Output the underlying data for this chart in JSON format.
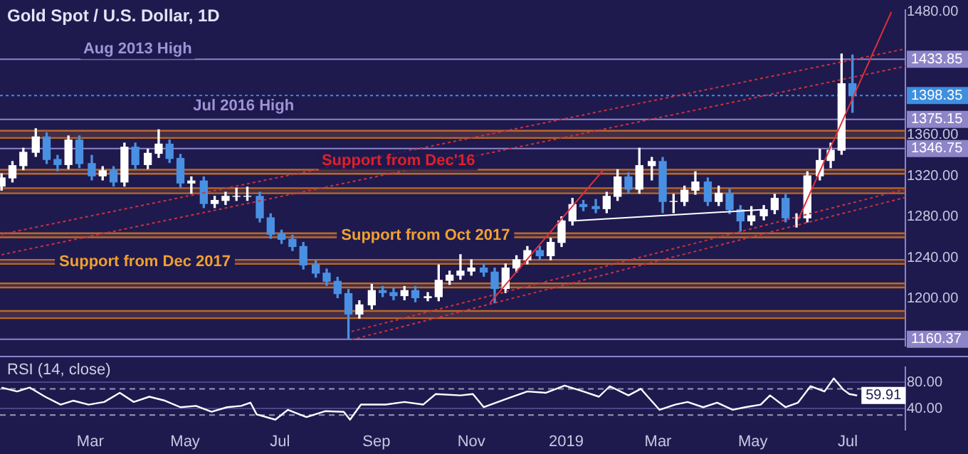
{
  "chart_data": [
    {
      "type": "candlestick",
      "title": "Gold Spot / U.S. Dollar, 1D",
      "tick_labels": "y",
      "x": [
        "2018-01-03",
        "2018-01-10",
        "2018-01-17",
        "2018-01-25",
        "2018-02-01",
        "2018-02-08",
        "2018-02-15",
        "2018-02-22",
        "2018-03-02",
        "2018-03-09",
        "2018-03-16",
        "2018-03-23",
        "2018-03-30",
        "2018-04-07",
        "2018-04-14",
        "2018-04-21",
        "2018-04-28",
        "2018-05-05",
        "2018-05-13",
        "2018-05-20",
        "2018-05-27",
        "2018-06-03",
        "2018-06-10",
        "2018-06-18",
        "2018-06-25",
        "2018-07-02",
        "2018-07-09",
        "2018-07-16",
        "2018-07-24",
        "2018-07-31",
        "2018-08-07",
        "2018-08-14",
        "2018-08-21",
        "2018-08-29",
        "2018-09-05",
        "2018-09-12",
        "2018-09-19",
        "2018-09-26",
        "2018-10-04",
        "2018-10-11",
        "2018-10-18",
        "2018-10-25",
        "2018-11-01",
        "2018-11-09",
        "2018-11-16",
        "2018-11-23",
        "2018-11-30",
        "2018-12-07",
        "2018-12-15",
        "2018-12-22",
        "2018-12-29",
        "2019-01-05",
        "2019-01-12",
        "2019-01-20",
        "2019-01-27",
        "2019-02-03",
        "2019-02-10",
        "2019-02-17",
        "2019-02-25",
        "2019-03-04",
        "2019-03-11",
        "2019-03-18",
        "2019-03-25",
        "2019-04-02",
        "2019-04-09",
        "2019-04-16",
        "2019-04-23",
        "2019-04-30",
        "2019-05-08",
        "2019-05-15",
        "2019-05-22",
        "2019-05-29",
        "2019-06-05",
        "2019-06-13",
        "2019-06-20",
        "2019-06-27",
        "2019-07-04"
      ],
      "ohlc": [
        [
          1310,
          1322,
          1306,
          1318
        ],
        [
          1318,
          1334,
          1314,
          1330
        ],
        [
          1330,
          1347,
          1326,
          1343
        ],
        [
          1343,
          1366,
          1339,
          1358
        ],
        [
          1358,
          1362,
          1332,
          1336
        ],
        [
          1336,
          1340,
          1325,
          1331
        ],
        [
          1331,
          1359,
          1327,
          1355
        ],
        [
          1355,
          1359,
          1328,
          1332
        ],
        [
          1332,
          1340,
          1316,
          1320
        ],
        [
          1320,
          1329,
          1316,
          1325
        ],
        [
          1325,
          1329,
          1310,
          1314
        ],
        [
          1314,
          1352,
          1310,
          1348
        ],
        [
          1348,
          1352,
          1327,
          1331
        ],
        [
          1331,
          1346,
          1327,
          1342
        ],
        [
          1342,
          1365,
          1338,
          1351
        ],
        [
          1351,
          1355,
          1333,
          1337
        ],
        [
          1337,
          1341,
          1309,
          1313
        ],
        [
          1313,
          1319,
          1303,
          1315
        ],
        [
          1315,
          1319,
          1289,
          1293
        ],
        [
          1293,
          1300,
          1289,
          1296
        ],
        [
          1296,
          1304,
          1292,
          1300
        ],
        [
          1300,
          1308,
          1296,
          1300
        ],
        [
          1300,
          1309,
          1296,
          1300
        ],
        [
          1300,
          1304,
          1275,
          1279
        ],
        [
          1279,
          1283,
          1259,
          1263
        ],
        [
          1263,
          1267,
          1254,
          1258
        ],
        [
          1258,
          1262,
          1247,
          1251
        ],
        [
          1251,
          1255,
          1229,
          1233
        ],
        [
          1233,
          1237,
          1221,
          1225
        ],
        [
          1225,
          1229,
          1213,
          1217
        ],
        [
          1217,
          1221,
          1201,
          1205
        ],
        [
          1205,
          1209,
          1161,
          1185
        ],
        [
          1185,
          1198,
          1181,
          1194
        ],
        [
          1194,
          1214,
          1190,
          1208
        ],
        [
          1208,
          1212,
          1202,
          1206
        ],
        [
          1206,
          1210,
          1199,
          1203
        ],
        [
          1203,
          1212,
          1199,
          1208
        ],
        [
          1208,
          1212,
          1197,
          1201
        ],
        [
          1201,
          1206,
          1198,
          1202
        ],
        [
          1202,
          1233,
          1198,
          1218
        ],
        [
          1218,
          1227,
          1214,
          1223
        ],
        [
          1223,
          1243,
          1219,
          1227
        ],
        [
          1227,
          1238,
          1223,
          1230
        ],
        [
          1230,
          1234,
          1222,
          1226
        ],
        [
          1226,
          1230,
          1196,
          1210
        ],
        [
          1210,
          1234,
          1206,
          1230
        ],
        [
          1230,
          1242,
          1226,
          1238
        ],
        [
          1238,
          1251,
          1234,
          1247
        ],
        [
          1247,
          1251,
          1238,
          1242
        ],
        [
          1242,
          1259,
          1238,
          1255
        ],
        [
          1255,
          1280,
          1251,
          1276
        ],
        [
          1276,
          1298,
          1272,
          1292
        ],
        [
          1292,
          1296,
          1286,
          1290
        ],
        [
          1290,
          1297,
          1284,
          1288
        ],
        [
          1288,
          1304,
          1284,
          1300
        ],
        [
          1300,
          1326,
          1296,
          1319
        ],
        [
          1319,
          1323,
          1303,
          1307
        ],
        [
          1307,
          1347,
          1303,
          1330
        ],
        [
          1330,
          1338,
          1316,
          1334
        ],
        [
          1334,
          1338,
          1284,
          1295
        ],
        [
          1295,
          1302,
          1284,
          1295
        ],
        [
          1295,
          1310,
          1291,
          1306
        ],
        [
          1306,
          1324,
          1302,
          1314
        ],
        [
          1314,
          1318,
          1291,
          1295
        ],
        [
          1295,
          1310,
          1291,
          1303
        ],
        [
          1303,
          1307,
          1283,
          1287
        ],
        [
          1287,
          1291,
          1266,
          1276
        ],
        [
          1276,
          1290,
          1272,
          1281
        ],
        [
          1281,
          1291,
          1277,
          1287
        ],
        [
          1287,
          1302,
          1283,
          1298
        ],
        [
          1298,
          1302,
          1275,
          1279
        ],
        [
          1279,
          1283,
          1270,
          1279
        ],
        [
          1279,
          1324,
          1275,
          1320
        ],
        [
          1320,
          1346,
          1316,
          1335
        ],
        [
          1335,
          1352,
          1328,
          1345
        ],
        [
          1345,
          1439,
          1341,
          1410
        ],
        [
          1410,
          1438,
          1382,
          1398.35
        ]
      ],
      "colors": [
        "#ffffff",
        "#ffffff",
        "#ffffff",
        "#ffffff",
        "#4a90e2",
        "#4a90e2",
        "#ffffff",
        "#4a90e2",
        "#4a90e2",
        "#ffffff",
        "#4a90e2",
        "#ffffff",
        "#4a90e2",
        "#ffffff",
        "#ffffff",
        "#4a90e2",
        "#4a90e2",
        "#ffffff",
        "#4a90e2",
        "#ffffff",
        "#ffffff",
        "#ffffff",
        "#ffffff",
        "#4a90e2",
        "#4a90e2",
        "#4a90e2",
        "#4a90e2",
        "#4a90e2",
        "#4a90e2",
        "#4a90e2",
        "#4a90e2",
        "#4a90e2",
        "#ffffff",
        "#ffffff",
        "#4a90e2",
        "#4a90e2",
        "#ffffff",
        "#4a90e2",
        "#ffffff",
        "#ffffff",
        "#ffffff",
        "#ffffff",
        "#ffffff",
        "#4a90e2",
        "#4a90e2",
        "#ffffff",
        "#ffffff",
        "#ffffff",
        "#4a90e2",
        "#ffffff",
        "#ffffff",
        "#ffffff",
        "#4a90e2",
        "#4a90e2",
        "#ffffff",
        "#ffffff",
        "#4a90e2",
        "#ffffff",
        "#ffffff",
        "#4a90e2",
        "#ffffff",
        "#ffffff",
        "#ffffff",
        "#4a90e2",
        "#ffffff",
        "#4a90e2",
        "#4a90e2",
        "#ffffff",
        "#ffffff",
        "#ffffff",
        "#4a90e2",
        "#ffffff",
        "#ffffff",
        "#ffffff",
        "#ffffff",
        "#ffffff",
        "#4a90e2"
      ],
      "series": [
        {
          "type": "line",
          "x": [
            "2018-01-03",
            "2019-08-07"
          ],
          "values": [
            1263,
            1444
          ],
          "color": "#d0303a",
          "line_style": "dotted"
        },
        {
          "type": "line",
          "x": [
            "2018-01-03",
            "2019-08-07"
          ],
          "values": [
            1243,
            1427
          ],
          "color": "#d0303a",
          "line_style": "dotted"
        },
        {
          "type": "line",
          "x": [
            "2018-08-16",
            "2019-08-07"
          ],
          "values": [
            1168,
            1307
          ],
          "color": "#d0303a",
          "line_style": "dotted"
        },
        {
          "type": "line",
          "x": [
            "2018-08-16",
            "2019-08-07"
          ],
          "values": [
            1160,
            1299
          ],
          "color": "#d0303a",
          "line_style": "dotted"
        },
        {
          "type": "line",
          "x": [
            "2018-11-13",
            "2019-01-25"
          ],
          "values": [
            1196,
            1326
          ],
          "color": "#e0303a",
          "line_style": "solid"
        },
        {
          "type": "line",
          "x": [
            "2019-05-30",
            "2019-07-29"
          ],
          "values": [
            1277,
            1480
          ],
          "color": "#e0303a",
          "line_style": "solid"
        },
        {
          "type": "line",
          "x": [
            "2019-01-04",
            "2019-05-08"
          ],
          "values": [
            1276,
            1287
          ],
          "color": "#ffffff",
          "line_style": "solid"
        }
      ],
      "xlim": [
        "2018-01-02",
        "2019-08-07"
      ],
      "ylim": [
        1154,
        1482
      ],
      "yticks": [
        {
          "value": 1200,
          "label": "1200.00"
        },
        {
          "value": 1240,
          "label": "1240.00"
        },
        {
          "value": 1280,
          "label": "1280.00"
        },
        {
          "value": 1320,
          "label": "1320.00"
        },
        {
          "value": 1360,
          "label": "1360.00"
        },
        {
          "value": 1480,
          "label": "1480.00"
        }
      ],
      "ref_lines": [
        {
          "axis": "y",
          "value": 1433.85,
          "label": "1433.85",
          "color": "#8e84c8"
        },
        {
          "axis": "y",
          "value": 1398.35,
          "label": "1398.35",
          "color": "#3d8fe0",
          "line_style": "dotted"
        },
        {
          "axis": "y",
          "value": 1375.15,
          "label": "1375.15",
          "color": "#8e84c8"
        },
        {
          "axis": "y",
          "value": 1346.75,
          "label": "1346.75",
          "color": "#8e84c8"
        },
        {
          "axis": "y",
          "value": 1160.37,
          "label": "1160.37",
          "color": "#8e84c8"
        }
      ],
      "bands": [
        {
          "axis": "y",
          "from": 1357,
          "to": 1364,
          "color": "#b8692a"
        },
        {
          "axis": "y",
          "from": 1322,
          "to": 1326,
          "color": "#b8692a"
        },
        {
          "axis": "y",
          "from": 1303,
          "to": 1308,
          "color": "#b8692a"
        },
        {
          "axis": "y",
          "from": 1260,
          "to": 1264,
          "color": "#b8692a",
          "label": "Support from Oct 2017"
        },
        {
          "axis": "y",
          "from": 1234,
          "to": 1238,
          "color": "#b8692a",
          "label": "Support from Dec 2017"
        },
        {
          "axis": "y",
          "from": 1211,
          "to": 1215,
          "color": "#b8692a"
        },
        {
          "axis": "y",
          "from": 1181,
          "to": 1188,
          "color": "#b8692a"
        }
      ],
      "annotations": [
        "Aug 2013 High",
        "Jul 2016 High",
        "Support from Dec'16"
      ]
    },
    {
      "type": "line",
      "title": "RSI (14, close)",
      "color": "#ffffff",
      "grid": "y",
      "x": [
        "2018-01-03",
        "2018-01-13",
        "2018-01-21",
        "2018-01-31",
        "2018-02-10",
        "2018-02-18",
        "2018-02-28",
        "2018-03-10",
        "2018-03-20",
        "2018-03-29",
        "2018-04-08",
        "2018-04-18",
        "2018-04-28",
        "2018-05-08",
        "2018-05-18",
        "2018-05-28",
        "2018-06-06",
        "2018-06-12",
        "2018-06-16",
        "2018-06-28",
        "2018-07-06",
        "2018-07-18",
        "2018-07-30",
        "2018-08-11",
        "2018-08-15",
        "2018-08-22",
        "2018-09-07",
        "2018-09-19",
        "2018-10-01",
        "2018-10-09",
        "2018-10-25",
        "2018-11-02",
        "2018-11-09",
        "2018-11-25",
        "2018-12-07",
        "2018-12-19",
        "2018-12-31",
        "2019-01-12",
        "2019-01-22",
        "2019-01-29",
        "2019-02-10",
        "2019-02-18",
        "2019-03-02",
        "2019-03-12",
        "2019-03-20",
        "2019-03-30",
        "2019-04-08",
        "2019-04-18",
        "2019-04-26",
        "2019-05-06",
        "2019-05-12",
        "2019-05-22",
        "2019-05-30",
        "2019-06-07",
        "2019-06-16",
        "2019-06-22",
        "2019-06-28",
        "2019-07-02",
        "2019-07-07"
      ],
      "values": [
        72,
        66,
        72,
        58,
        46,
        52,
        46,
        50,
        64,
        50,
        58,
        52,
        42,
        44,
        35,
        42,
        44,
        49,
        31,
        23,
        38,
        27,
        36,
        35,
        23,
        46,
        46,
        50,
        46,
        62,
        60,
        62,
        42,
        56,
        66,
        64,
        75,
        66,
        58,
        74,
        60,
        70,
        38,
        46,
        50,
        42,
        49,
        38,
        42,
        46,
        60,
        42,
        49,
        74,
        66,
        86,
        69,
        62,
        59.91
      ],
      "value_labels": [
        null,
        null,
        null,
        null,
        null,
        null,
        null,
        null,
        null,
        null,
        null,
        null,
        null,
        null,
        null,
        null,
        null,
        null,
        null,
        null,
        null,
        null,
        null,
        null,
        null,
        null,
        null,
        null,
        null,
        null,
        null,
        null,
        null,
        null,
        null,
        null,
        null,
        null,
        null,
        null,
        null,
        null,
        null,
        null,
        null,
        null,
        null,
        null,
        null,
        null,
        null,
        null,
        null,
        null,
        null,
        null,
        null,
        null,
        "59.91"
      ],
      "xlim": [
        "2018-01-02",
        "2019-08-07"
      ],
      "ylim": [
        8,
        103
      ],
      "xticks": [
        {
          "value": "2018-03-01",
          "label": "Mar"
        },
        {
          "value": "2018-05-01",
          "label": "May"
        },
        {
          "value": "2018-07-01",
          "label": "Jul"
        },
        {
          "value": "2018-09-01",
          "label": "Sep"
        },
        {
          "value": "2018-11-01",
          "label": "Nov"
        },
        {
          "value": "2019-01-01",
          "label": "2019"
        },
        {
          "value": "2019-03-01",
          "label": "Mar"
        },
        {
          "value": "2019-05-01",
          "label": "May"
        },
        {
          "value": "2019-07-01",
          "label": "Jul"
        }
      ],
      "yticks": [
        {
          "value": 40,
          "label": "40.00"
        },
        {
          "value": 80,
          "label": "80.00"
        }
      ],
      "ref_lines": [
        {
          "axis": "y",
          "value": 70,
          "color": "#9a96b8",
          "line_style": "dashed"
        },
        {
          "axis": "y",
          "value": 30,
          "color": "#9a96b8",
          "line_style": "dashed"
        }
      ]
    }
  ]
}
